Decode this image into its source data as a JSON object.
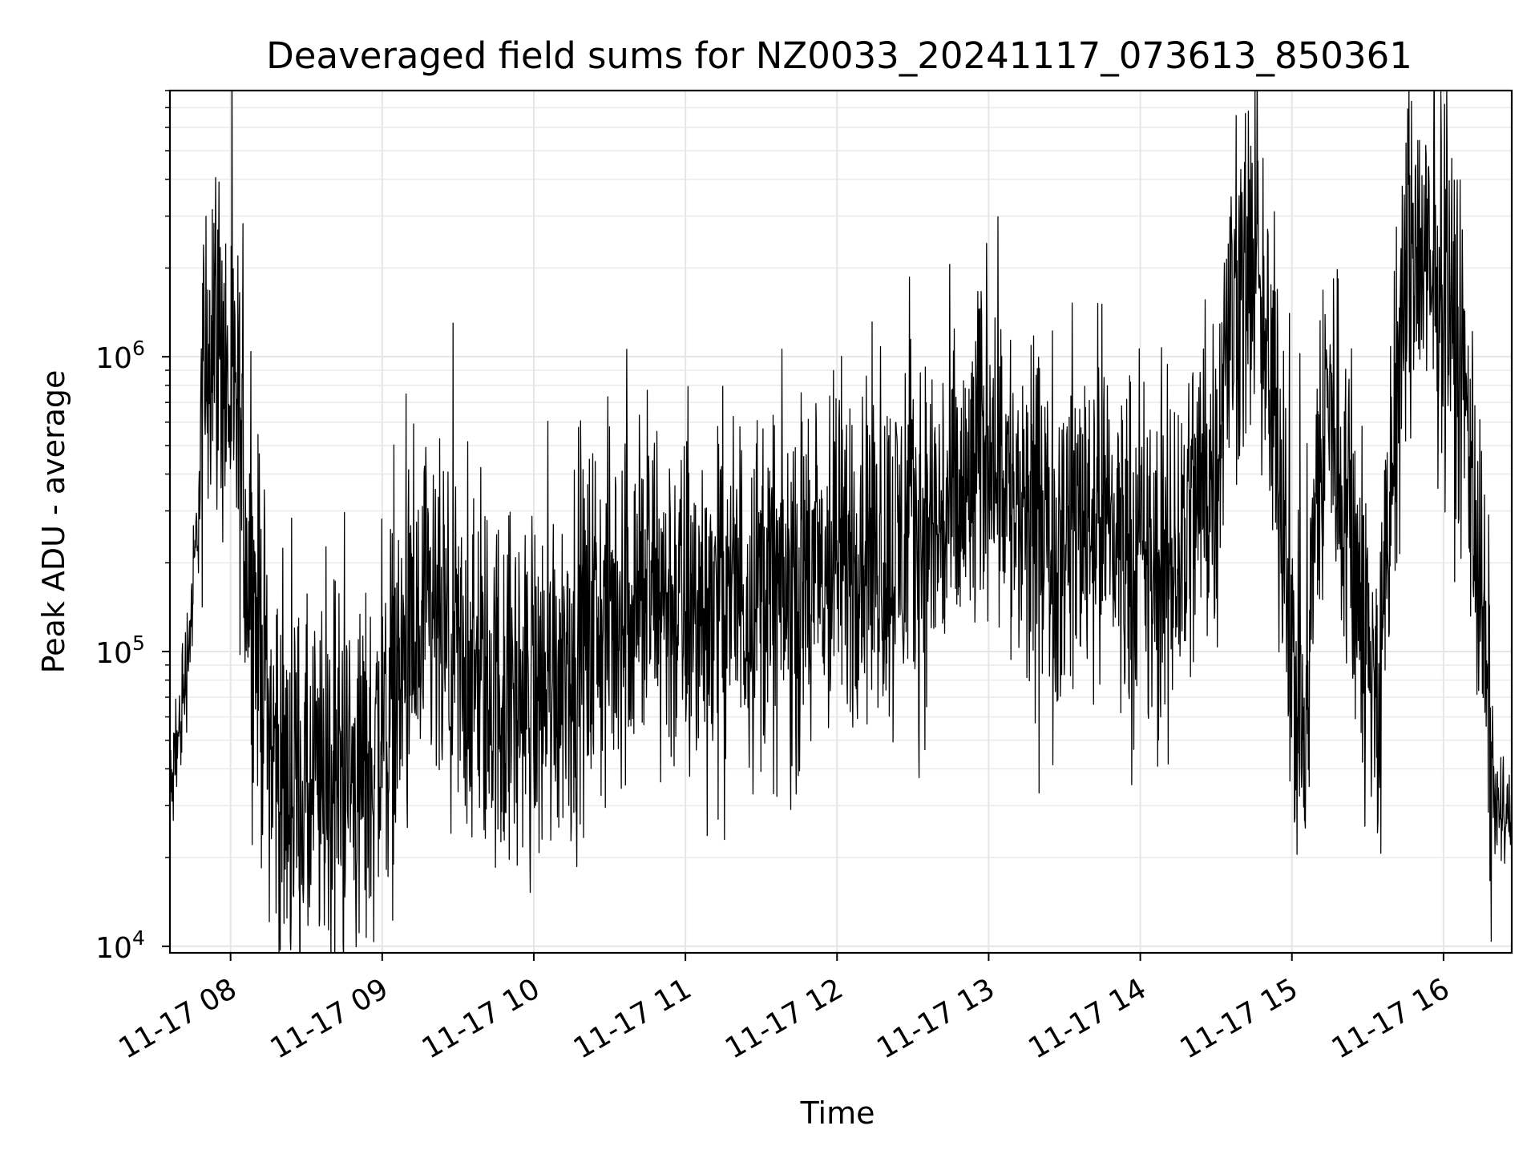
{
  "chart_data": {
    "type": "line",
    "title": "Deaveraged field sums for NZ0033_20241117_073613_850361",
    "xlabel": "Time",
    "ylabel": "Peak ADU - average",
    "yscale": "log",
    "ylim": [
      9500,
      8000000
    ],
    "xlim": [
      "2024-11-17 07:36",
      "2024-11-17 16:27"
    ],
    "grid": true,
    "line_color": "#000000",
    "x_tick_labels": [
      "11-17 08",
      "11-17 09",
      "11-17 10",
      "11-17 11",
      "11-17 12",
      "11-17 13",
      "11-17 14",
      "11-17 15",
      "11-17 16"
    ],
    "y_tick_labels": [
      {
        "value": 10000,
        "base": "10",
        "exp": "4"
      },
      {
        "value": 100000,
        "base": "10",
        "exp": "5"
      },
      {
        "value": 1000000,
        "base": "10",
        "exp": "6"
      }
    ],
    "series": [
      {
        "x": [
          "2024-11-17 07:36",
          "2024-11-17 07:40",
          "2024-11-17 07:45",
          "2024-11-17 07:48",
          "2024-11-17 07:51",
          "2024-11-17 07:53",
          "2024-11-17 07:55",
          "2024-11-17 07:57",
          "2024-11-17 08:00",
          "2024-11-17 08:03",
          "2024-11-17 08:06",
          "2024-11-17 08:09",
          "2024-11-17 08:13",
          "2024-11-17 08:17",
          "2024-11-17 08:21",
          "2024-11-17 08:26",
          "2024-11-17 08:30",
          "2024-11-17 08:35",
          "2024-11-17 08:40",
          "2024-11-17 08:45",
          "2024-11-17 08:50",
          "2024-11-17 08:55",
          "2024-11-17 09:00",
          "2024-11-17 09:05",
          "2024-11-17 09:10",
          "2024-11-17 09:15",
          "2024-11-17 09:20",
          "2024-11-17 09:25",
          "2024-11-17 09:30",
          "2024-11-17 09:40",
          "2024-11-17 09:50",
          "2024-11-17 10:00",
          "2024-11-17 10:10",
          "2024-11-17 10:20",
          "2024-11-17 10:30",
          "2024-11-17 10:40",
          "2024-11-17 10:50",
          "2024-11-17 11:00",
          "2024-11-17 11:10",
          "2024-11-17 11:20",
          "2024-11-17 11:30",
          "2024-11-17 11:40",
          "2024-11-17 11:50",
          "2024-11-17 12:00",
          "2024-11-17 12:10",
          "2024-11-17 12:20",
          "2024-11-17 12:30",
          "2024-11-17 12:40",
          "2024-11-17 12:50",
          "2024-11-17 12:55",
          "2024-11-17 13:00",
          "2024-11-17 13:05",
          "2024-11-17 13:10",
          "2024-11-17 13:20",
          "2024-11-17 13:30",
          "2024-11-17 13:40",
          "2024-11-17 13:50",
          "2024-11-17 14:00",
          "2024-11-17 14:10",
          "2024-11-17 14:20",
          "2024-11-17 14:30",
          "2024-11-17 14:35",
          "2024-11-17 14:40",
          "2024-11-17 14:45",
          "2024-11-17 14:50",
          "2024-11-17 14:55",
          "2024-11-17 15:00",
          "2024-11-17 15:05",
          "2024-11-17 15:10",
          "2024-11-17 15:15",
          "2024-11-17 15:20",
          "2024-11-17 15:25",
          "2024-11-17 15:30",
          "2024-11-17 15:35",
          "2024-11-17 15:40",
          "2024-11-17 15:45",
          "2024-11-17 15:50",
          "2024-11-17 15:55",
          "2024-11-17 16:00",
          "2024-11-17 16:05",
          "2024-11-17 16:10",
          "2024-11-17 16:15",
          "2024-11-17 16:20",
          "2024-11-17 16:27"
        ],
        "y": [
          30000,
          55000,
          150000,
          380000,
          1100000,
          1500000,
          1200000,
          900000,
          700000,
          550000,
          250000,
          130000,
          90000,
          45000,
          35000,
          32000,
          30000,
          33000,
          35000,
          38000,
          36000,
          40000,
          55000,
          70000,
          90000,
          100000,
          120000,
          95000,
          80000,
          75000,
          70000,
          70000,
          90000,
          110000,
          130000,
          150000,
          160000,
          130000,
          140000,
          160000,
          170000,
          150000,
          160000,
          200000,
          230000,
          210000,
          250000,
          270000,
          300000,
          400000,
          600000,
          500000,
          280000,
          220000,
          250000,
          320000,
          250000,
          200000,
          160000,
          300000,
          450000,
          1200000,
          1800000,
          2000000,
          900000,
          500000,
          90000,
          50000,
          350000,
          700000,
          400000,
          200000,
          90000,
          70000,
          400000,
          1800000,
          2500000,
          1500000,
          2000000,
          1000000,
          600000,
          150000,
          30000,
          25000
        ],
        "noise_amplitude_log10": 0.38,
        "sample_count": 3200
      }
    ]
  }
}
